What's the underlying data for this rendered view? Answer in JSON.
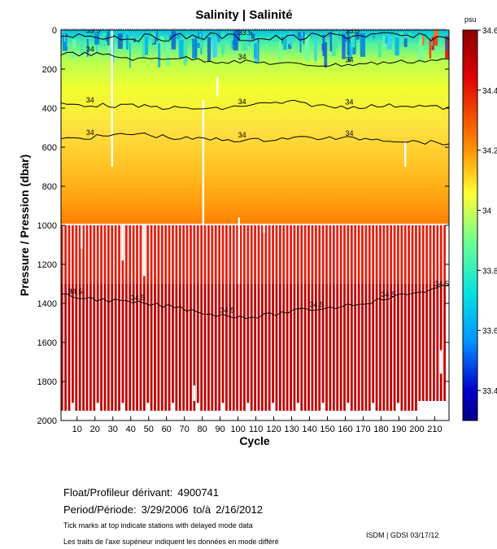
{
  "chart_data": {
    "type": "heatmap",
    "title": "Salinity | Salinité",
    "xlabel": "Cycle",
    "ylabel": "Pressure / Pression (dbar)",
    "xlim": [
      1,
      218
    ],
    "ylim": [
      0,
      2000
    ],
    "x_ticks": [
      10,
      20,
      30,
      40,
      50,
      60,
      70,
      80,
      90,
      100,
      110,
      120,
      130,
      140,
      150,
      160,
      170,
      180,
      190,
      200,
      210
    ],
    "x_tick_labels": [
      "10",
      "20",
      "30",
      "40",
      "50",
      "60",
      "70",
      "80",
      "90",
      "100",
      "110",
      "120",
      "130",
      "140",
      "150",
      "160",
      "170",
      "180",
      "190",
      "200",
      "210"
    ],
    "y_ticks": [
      0,
      200,
      400,
      600,
      800,
      1000,
      1200,
      1400,
      1600,
      1800,
      2000
    ],
    "y_tick_labels": [
      "0",
      "200",
      "400",
      "600",
      "800",
      "1000",
      "1200",
      "1400",
      "1600",
      "1800",
      "2000"
    ],
    "colorbar": {
      "unit": "psu",
      "range": [
        33.3,
        34.6
      ],
      "tick_values": [
        34.6,
        34.4,
        34.2,
        34.0,
        33.8,
        33.6,
        33.4
      ],
      "tick_labels": [
        "34.6",
        "34.4",
        "34.2",
        "34",
        "33.8",
        "33.6",
        "33.4"
      ]
    },
    "contours": [
      {
        "level": 33.5,
        "label": "33.5",
        "depth_dbar": [
          20,
          30,
          40,
          35,
          30,
          45,
          40,
          30,
          25,
          35,
          40
        ]
      },
      {
        "level": 34.0,
        "label": "34",
        "depth_dbar": [
          120,
          125,
          150,
          140,
          160,
          165,
          175,
          180,
          170,
          160,
          150
        ]
      },
      {
        "level": 34.0,
        "label": "34",
        "depth_dbar": [
          380,
          385,
          390,
          400,
          405,
          380,
          370,
          395,
          390,
          385,
          400
        ]
      },
      {
        "level": 34.0,
        "label": "34",
        "depth_dbar": [
          560,
          545,
          530,
          555,
          560,
          565,
          550,
          555,
          555,
          570,
          580
        ]
      },
      {
        "level": 34.5,
        "label": "34.5",
        "depth_dbar": [
          1360,
          1380,
          1400,
          1420,
          1460,
          1470,
          1440,
          1420,
          1390,
          1350,
          1310
        ]
      }
    ]
  },
  "footer": {
    "float_label": "Float/Profileur dérivant:",
    "float_id": "4900741",
    "period_label": "Period/Période:",
    "period_start": "3/29/2006",
    "period_to": "to/à",
    "period_end": "2/16/2012",
    "note_en": "Tick marks at top indicate stations with delayed mode data",
    "note_fr": "Les traits de l'axe supérieur indiquent les données en mode différé",
    "credit": "ISDM | GDSI 03/17/12"
  }
}
